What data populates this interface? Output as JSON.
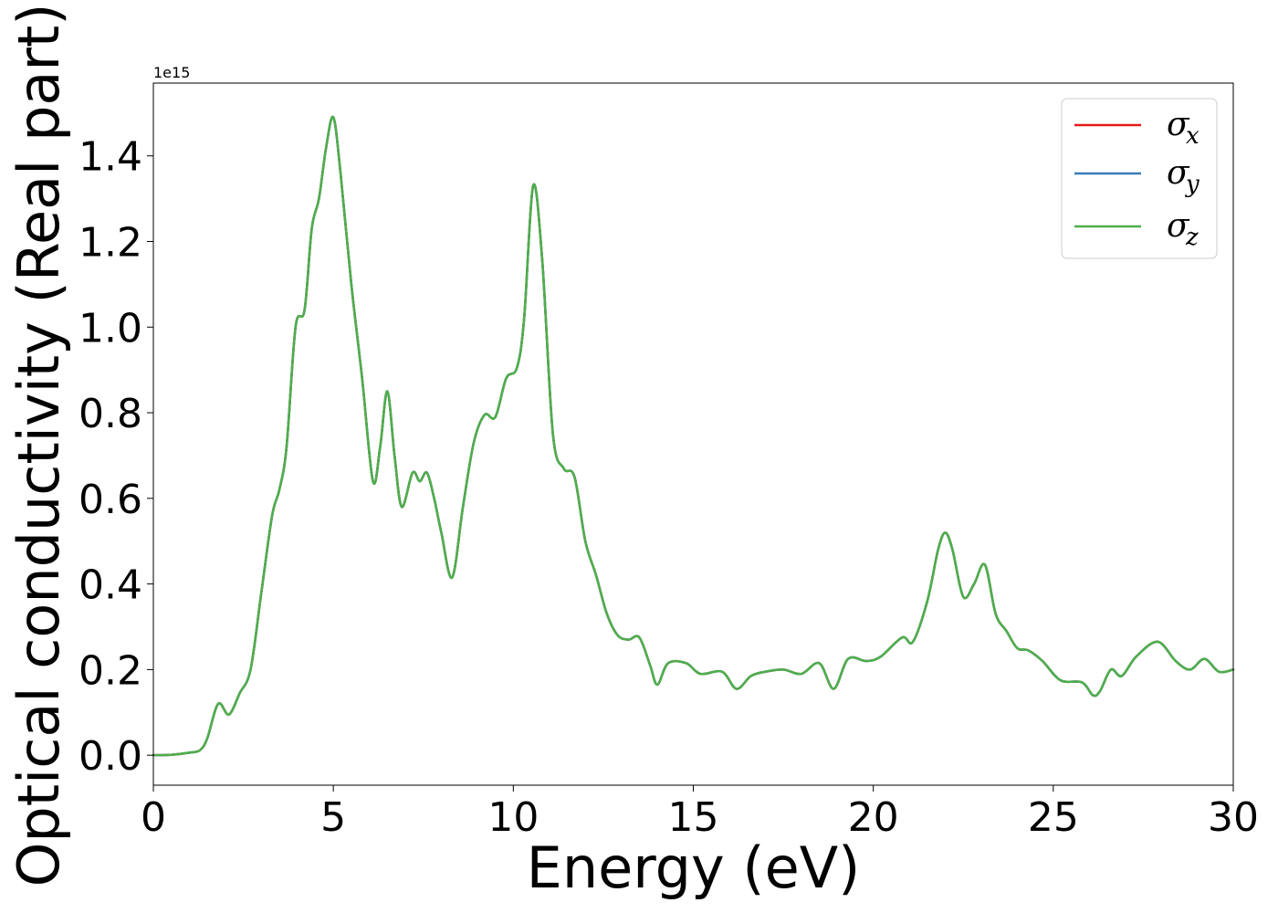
{
  "chart_data": {
    "type": "line",
    "xlabel": "Energy (eV)",
    "ylabel": "Optical conductivity (Real part)",
    "y_offset_text": "1e15",
    "y_multiplier": 1000000000000000.0,
    "xlim": [
      0,
      30
    ],
    "ylim": [
      -0.07,
      1.57
    ],
    "xticks": [
      0,
      5,
      10,
      15,
      20,
      25,
      30
    ],
    "xtick_labels": [
      "0",
      "5",
      "10",
      "15",
      "20",
      "25",
      "30"
    ],
    "yticks": [
      0.0,
      0.2,
      0.4,
      0.6,
      0.8,
      1.0,
      1.2,
      1.4
    ],
    "ytick_labels": [
      "0.0",
      "0.2",
      "0.4",
      "0.6",
      "0.8",
      "1.0",
      "1.2",
      "1.4"
    ],
    "grid": false,
    "legend_position": "top-right",
    "colors": {
      "sigma_x": "#e41a1c",
      "sigma_y": "#377eb8",
      "sigma_z": "#4daf4a"
    },
    "legend": [
      {
        "symbol": "σ",
        "subscript": "x",
        "color": "#e41a1c"
      },
      {
        "symbol": "σ",
        "subscript": "y",
        "color": "#377eb8"
      },
      {
        "symbol": "σ",
        "subscript": "z",
        "color": "#4daf4a"
      }
    ],
    "x": [
      0,
      0.5,
      1.0,
      1.3,
      1.5,
      1.8,
      2.1,
      2.4,
      2.7,
      3.0,
      3.3,
      3.5,
      3.7,
      3.95,
      4.2,
      4.4,
      4.6,
      4.8,
      5.0,
      5.2,
      5.5,
      5.8,
      6.1,
      6.3,
      6.5,
      6.7,
      6.9,
      7.2,
      7.4,
      7.6,
      7.8,
      8.0,
      8.3,
      8.6,
      8.9,
      9.2,
      9.5,
      9.8,
      10.1,
      10.3,
      10.55,
      10.8,
      11.1,
      11.4,
      11.7,
      12.0,
      12.3,
      12.6,
      12.9,
      13.2,
      13.5,
      13.8,
      14.0,
      14.3,
      14.8,
      15.2,
      15.8,
      16.2,
      16.6,
      17.0,
      17.5,
      18.0,
      18.5,
      18.9,
      19.3,
      19.8,
      20.2,
      20.8,
      21.1,
      21.5,
      21.8,
      22.0,
      22.2,
      22.5,
      22.8,
      23.1,
      23.4,
      23.7,
      24.0,
      24.3,
      24.7,
      25.2,
      25.8,
      26.1,
      26.3,
      26.6,
      26.9,
      27.3,
      27.9,
      28.4,
      28.8,
      29.2,
      29.6,
      30.0
    ],
    "series": [
      {
        "name": "σ_x",
        "values": [
          0.0,
          0.001,
          0.006,
          0.012,
          0.04,
          0.12,
          0.095,
          0.145,
          0.2,
          0.38,
          0.56,
          0.62,
          0.72,
          1.0,
          1.04,
          1.23,
          1.3,
          1.42,
          1.49,
          1.36,
          1.1,
          0.88,
          0.64,
          0.72,
          0.85,
          0.7,
          0.58,
          0.66,
          0.64,
          0.66,
          0.6,
          0.52,
          0.415,
          0.58,
          0.73,
          0.795,
          0.79,
          0.88,
          0.905,
          1.02,
          1.33,
          1.16,
          0.75,
          0.67,
          0.65,
          0.5,
          0.42,
          0.33,
          0.28,
          0.27,
          0.275,
          0.21,
          0.165,
          0.215,
          0.215,
          0.19,
          0.195,
          0.155,
          0.185,
          0.195,
          0.2,
          0.19,
          0.215,
          0.155,
          0.225,
          0.22,
          0.23,
          0.275,
          0.265,
          0.36,
          0.48,
          0.52,
          0.48,
          0.37,
          0.4,
          0.445,
          0.33,
          0.29,
          0.25,
          0.245,
          0.22,
          0.175,
          0.17,
          0.14,
          0.15,
          0.2,
          0.185,
          0.23,
          0.265,
          0.22,
          0.2,
          0.225,
          0.195,
          0.2
        ]
      },
      {
        "name": "σ_y",
        "values": [
          0.0,
          0.001,
          0.006,
          0.012,
          0.04,
          0.12,
          0.095,
          0.145,
          0.2,
          0.38,
          0.56,
          0.62,
          0.72,
          1.0,
          1.04,
          1.23,
          1.3,
          1.42,
          1.49,
          1.36,
          1.1,
          0.88,
          0.64,
          0.72,
          0.85,
          0.7,
          0.58,
          0.66,
          0.64,
          0.66,
          0.6,
          0.52,
          0.415,
          0.58,
          0.73,
          0.795,
          0.79,
          0.88,
          0.905,
          1.02,
          1.33,
          1.16,
          0.75,
          0.67,
          0.65,
          0.5,
          0.42,
          0.33,
          0.28,
          0.27,
          0.275,
          0.21,
          0.165,
          0.215,
          0.215,
          0.19,
          0.195,
          0.155,
          0.185,
          0.195,
          0.2,
          0.19,
          0.215,
          0.155,
          0.225,
          0.22,
          0.23,
          0.275,
          0.265,
          0.36,
          0.48,
          0.52,
          0.48,
          0.37,
          0.4,
          0.445,
          0.33,
          0.29,
          0.25,
          0.245,
          0.22,
          0.175,
          0.17,
          0.14,
          0.15,
          0.2,
          0.185,
          0.23,
          0.265,
          0.22,
          0.2,
          0.225,
          0.195,
          0.2
        ]
      },
      {
        "name": "σ_z",
        "values": [
          0.0,
          0.001,
          0.006,
          0.012,
          0.04,
          0.12,
          0.095,
          0.145,
          0.2,
          0.38,
          0.56,
          0.62,
          0.72,
          1.0,
          1.04,
          1.23,
          1.3,
          1.42,
          1.49,
          1.36,
          1.1,
          0.88,
          0.64,
          0.72,
          0.85,
          0.7,
          0.58,
          0.66,
          0.64,
          0.66,
          0.6,
          0.52,
          0.415,
          0.58,
          0.73,
          0.795,
          0.79,
          0.88,
          0.905,
          1.02,
          1.33,
          1.16,
          0.75,
          0.67,
          0.65,
          0.5,
          0.42,
          0.33,
          0.28,
          0.27,
          0.275,
          0.21,
          0.165,
          0.215,
          0.215,
          0.19,
          0.195,
          0.155,
          0.185,
          0.195,
          0.2,
          0.19,
          0.215,
          0.155,
          0.225,
          0.22,
          0.23,
          0.275,
          0.265,
          0.36,
          0.48,
          0.52,
          0.48,
          0.37,
          0.4,
          0.445,
          0.33,
          0.29,
          0.25,
          0.245,
          0.22,
          0.175,
          0.17,
          0.14,
          0.15,
          0.2,
          0.185,
          0.23,
          0.265,
          0.22,
          0.2,
          0.225,
          0.195,
          0.2
        ]
      }
    ]
  }
}
